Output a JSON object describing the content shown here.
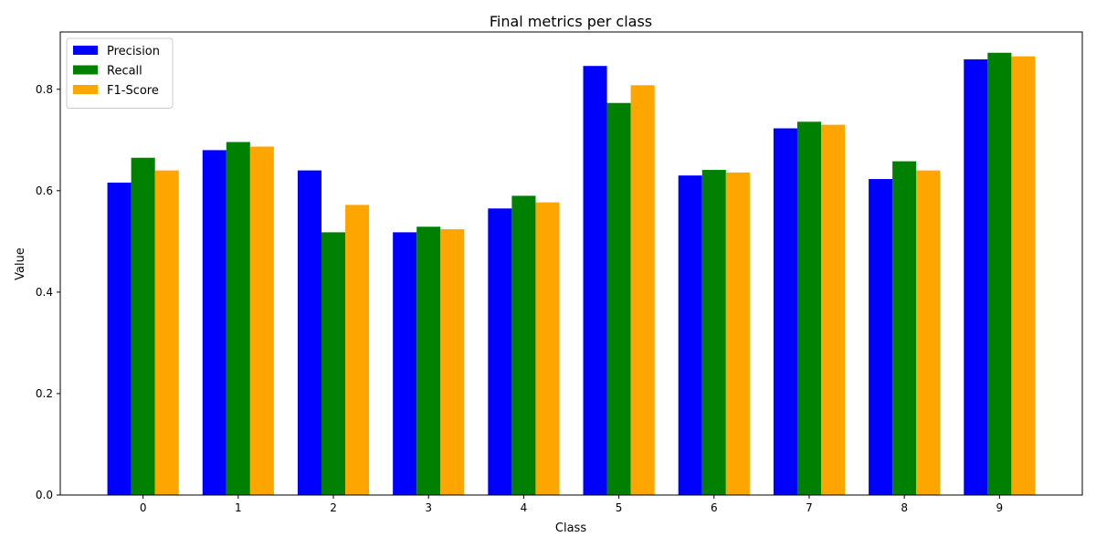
{
  "chart_data": {
    "type": "bar",
    "title": "Final metrics per class",
    "xlabel": "Class",
    "ylabel": "Value",
    "categories": [
      "0",
      "1",
      "2",
      "3",
      "4",
      "5",
      "6",
      "7",
      "8",
      "9"
    ],
    "yticks": [
      "0.0",
      "0.2",
      "0.4",
      "0.6",
      "0.8"
    ],
    "ylim": [
      0,
      0.913
    ],
    "grid": false,
    "legend_position": "top-left",
    "series": [
      {
        "name": "Precision",
        "color": "#0000ff",
        "values": [
          0.616,
          0.68,
          0.64,
          0.518,
          0.565,
          0.846,
          0.63,
          0.723,
          0.623,
          0.859
        ]
      },
      {
        "name": "Recall",
        "color": "#008000",
        "values": [
          0.665,
          0.696,
          0.518,
          0.529,
          0.59,
          0.773,
          0.641,
          0.736,
          0.658,
          0.872
        ]
      },
      {
        "name": "F1-Score",
        "color": "#ffa500",
        "values": [
          0.64,
          0.687,
          0.572,
          0.524,
          0.577,
          0.808,
          0.636,
          0.73,
          0.64,
          0.865
        ]
      }
    ]
  }
}
